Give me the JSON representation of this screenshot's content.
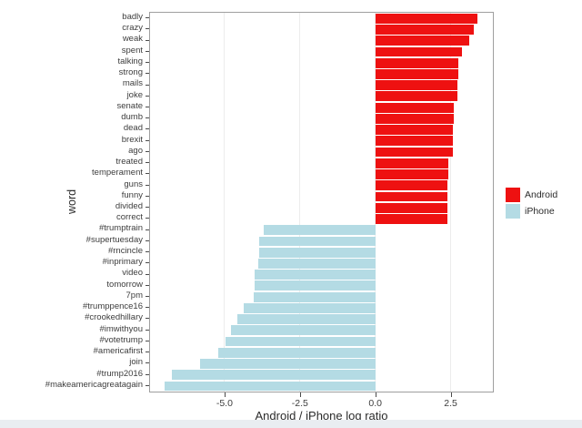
{
  "chart_data": {
    "type": "bar",
    "orientation": "horizontal",
    "title": "",
    "xlabel": "Android / iPhone log ratio",
    "ylabel": "word",
    "xlim": [
      -7.47,
      3.9
    ],
    "grid": "vertical-major-only",
    "legend_position": "right",
    "x_ticks": [
      {
        "value": -5.0,
        "label": "-5.0"
      },
      {
        "value": -2.5,
        "label": "-2.5"
      },
      {
        "value": 0.0,
        "label": "0.0"
      },
      {
        "value": 2.5,
        "label": "2.5"
      }
    ],
    "legend": [
      {
        "label": "Android",
        "color": "#ee1111"
      },
      {
        "label": "iPhone",
        "color": "#b4dbe4"
      }
    ],
    "bars": [
      {
        "word": "badly",
        "value": 3.4,
        "group": "Android"
      },
      {
        "word": "crazy",
        "value": 3.26,
        "group": "Android"
      },
      {
        "word": "weak",
        "value": 3.11,
        "group": "Android"
      },
      {
        "word": "spent",
        "value": 2.89,
        "group": "Android"
      },
      {
        "word": "talking",
        "value": 2.75,
        "group": "Android"
      },
      {
        "word": "strong",
        "value": 2.74,
        "group": "Android"
      },
      {
        "word": "mails",
        "value": 2.73,
        "group": "Android"
      },
      {
        "word": "joke",
        "value": 2.71,
        "group": "Android"
      },
      {
        "word": "senate",
        "value": 2.6,
        "group": "Android"
      },
      {
        "word": "dumb",
        "value": 2.59,
        "group": "Android"
      },
      {
        "word": "dead",
        "value": 2.58,
        "group": "Android"
      },
      {
        "word": "brexit",
        "value": 2.57,
        "group": "Android"
      },
      {
        "word": "ago",
        "value": 2.56,
        "group": "Android"
      },
      {
        "word": "treated",
        "value": 2.42,
        "group": "Android"
      },
      {
        "word": "temperament",
        "value": 2.41,
        "group": "Android"
      },
      {
        "word": "guns",
        "value": 2.4,
        "group": "Android"
      },
      {
        "word": "funny",
        "value": 2.4,
        "group": "Android"
      },
      {
        "word": "divided",
        "value": 2.39,
        "group": "Android"
      },
      {
        "word": "correct",
        "value": 2.38,
        "group": "Android"
      },
      {
        "word": "#trumptrain",
        "value": -3.7,
        "group": "iPhone"
      },
      {
        "word": "#supertuesday",
        "value": -3.86,
        "group": "iPhone"
      },
      {
        "word": "#rncincle",
        "value": -3.86,
        "group": "iPhone"
      },
      {
        "word": "#inprimary",
        "value": -3.87,
        "group": "iPhone"
      },
      {
        "word": "video",
        "value": -4.0,
        "group": "iPhone"
      },
      {
        "word": "tomorrow",
        "value": -4.01,
        "group": "iPhone"
      },
      {
        "word": "7pm",
        "value": -4.02,
        "group": "iPhone"
      },
      {
        "word": "#trumppence16",
        "value": -4.35,
        "group": "iPhone"
      },
      {
        "word": "#crookedhillary",
        "value": -4.57,
        "group": "iPhone"
      },
      {
        "word": "#imwithyou",
        "value": -4.79,
        "group": "iPhone"
      },
      {
        "word": "#votetrump",
        "value": -4.97,
        "group": "iPhone"
      },
      {
        "word": "#americafirst",
        "value": -5.2,
        "group": "iPhone"
      },
      {
        "word": "join",
        "value": -5.8,
        "group": "iPhone"
      },
      {
        "word": "#trump2016",
        "value": -6.76,
        "group": "iPhone"
      },
      {
        "word": "#makeamericagreatagain",
        "value": -7.0,
        "group": "iPhone"
      }
    ]
  }
}
